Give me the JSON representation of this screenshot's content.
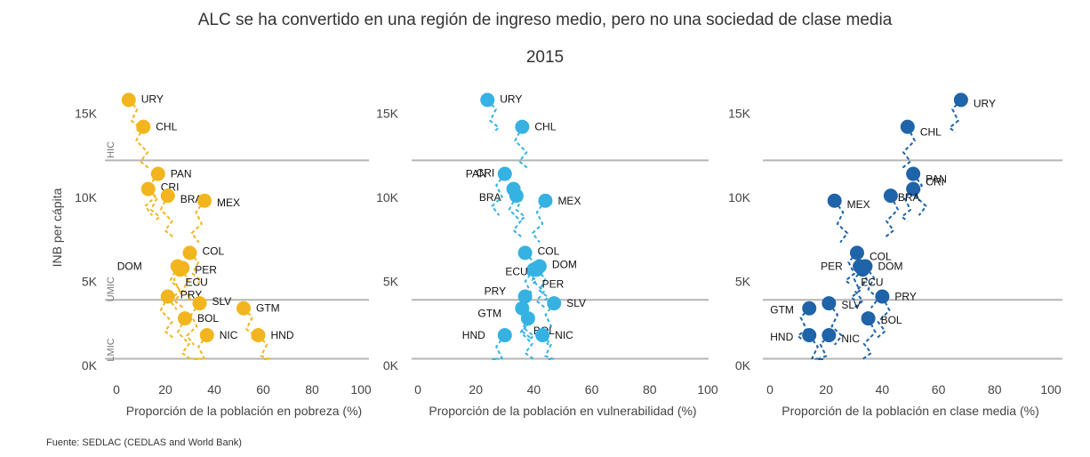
{
  "title": "ALC se ha convertido en una región de ingreso medio, pero no una sociedad de clase media",
  "subtitle": "2015",
  "source": "Fuente: SEDLAC (CEDLAS and World Bank)",
  "chart_data": {
    "type": "scatter",
    "ylabel": "INB per cápita",
    "ylim": [
      0,
      16000
    ],
    "yticks": [
      0,
      5000,
      10000,
      15000
    ],
    "ytick_labels": [
      "0K",
      "5K",
      "10K",
      "15K"
    ],
    "xticks": [
      0,
      20,
      40,
      60,
      80,
      100
    ],
    "income_thresholds": [
      {
        "label": "HIC",
        "value": 12200
      },
      {
        "label": "UMIC",
        "value": 3900
      },
      {
        "label": "LMIC",
        "value": 400
      }
    ],
    "panels": [
      {
        "name": "pobreza",
        "xlabel": "Proporción de la población en pobreza (%)",
        "xlim": [
          0,
          100
        ],
        "color": "#F2B51E",
        "points": [
          {
            "label": "URY",
            "x": 5,
            "y": 15800
          },
          {
            "label": "CHL",
            "x": 11,
            "y": 14200
          },
          {
            "label": "PAN",
            "x": 17,
            "y": 11400
          },
          {
            "label": "CRI",
            "x": 13,
            "y": 10500
          },
          {
            "label": "BRA",
            "x": 21,
            "y": 10100
          },
          {
            "label": "MEX",
            "x": 36,
            "y": 9800
          },
          {
            "label": "COL",
            "x": 30,
            "y": 6700
          },
          {
            "label": "DOM",
            "x": 25,
            "y": 5900
          },
          {
            "label": "PER",
            "x": 27,
            "y": 5800
          },
          {
            "label": "ECU",
            "x": 26,
            "y": 5700
          },
          {
            "label": "PRY",
            "x": 21,
            "y": 4100
          },
          {
            "label": "SLV",
            "x": 34,
            "y": 3700
          },
          {
            "label": "GTM",
            "x": 52,
            "y": 3400
          },
          {
            "label": "BOL",
            "x": 28,
            "y": 2800
          },
          {
            "label": "NIC",
            "x": 37,
            "y": 1800
          },
          {
            "label": "HND",
            "x": 58,
            "y": 1800
          }
        ]
      },
      {
        "name": "vulnerabilidad",
        "xlabel": "Proporción de la población en vulnerabilidad (%)",
        "xlim": [
          0,
          100
        ],
        "color": "#35B2E2",
        "points": [
          {
            "label": "URY",
            "x": 24,
            "y": 15800
          },
          {
            "label": "CHL",
            "x": 36,
            "y": 14200
          },
          {
            "label": "PAN",
            "x": 30,
            "y": 11400
          },
          {
            "label": "CRI",
            "x": 33,
            "y": 10500
          },
          {
            "label": "BRA",
            "x": 34,
            "y": 10100
          },
          {
            "label": "MEX",
            "x": 44,
            "y": 9800
          },
          {
            "label": "COL",
            "x": 37,
            "y": 6700
          },
          {
            "label": "DOM",
            "x": 42,
            "y": 5900
          },
          {
            "label": "ECU",
            "x": 40,
            "y": 5700
          },
          {
            "label": "PER",
            "x": 41,
            "y": 5700
          },
          {
            "label": "PRY",
            "x": 37,
            "y": 4100
          },
          {
            "label": "SLV",
            "x": 47,
            "y": 3700
          },
          {
            "label": "GTM",
            "x": 36,
            "y": 3400
          },
          {
            "label": "BOL",
            "x": 38,
            "y": 2800
          },
          {
            "label": "HND",
            "x": 30,
            "y": 1800
          },
          {
            "label": "NIC",
            "x": 43,
            "y": 1800
          }
        ]
      },
      {
        "name": "clase media",
        "xlabel": "Proporción de la población en clase media (%)",
        "xlim": [
          0,
          100
        ],
        "color": "#1F63A8",
        "points": [
          {
            "label": "URY",
            "x": 68,
            "y": 15800
          },
          {
            "label": "CHL",
            "x": 49,
            "y": 14200
          },
          {
            "label": "PAN",
            "x": 51,
            "y": 11400
          },
          {
            "label": "CRI",
            "x": 51,
            "y": 10500
          },
          {
            "label": "BRA",
            "x": 43,
            "y": 10100
          },
          {
            "label": "MEX",
            "x": 23,
            "y": 9800
          },
          {
            "label": "COL",
            "x": 31,
            "y": 6700
          },
          {
            "label": "PER",
            "x": 32,
            "y": 5900
          },
          {
            "label": "DOM",
            "x": 34,
            "y": 5900
          },
          {
            "label": "ECU",
            "x": 33,
            "y": 5700
          },
          {
            "label": "PRY",
            "x": 40,
            "y": 4100
          },
          {
            "label": "SLV",
            "x": 21,
            "y": 3700
          },
          {
            "label": "GTM",
            "x": 14,
            "y": 3400
          },
          {
            "label": "BOL",
            "x": 35,
            "y": 2800
          },
          {
            "label": "HND",
            "x": 14,
            "y": 1800
          },
          {
            "label": "NIC",
            "x": 21,
            "y": 1800
          }
        ]
      }
    ]
  }
}
